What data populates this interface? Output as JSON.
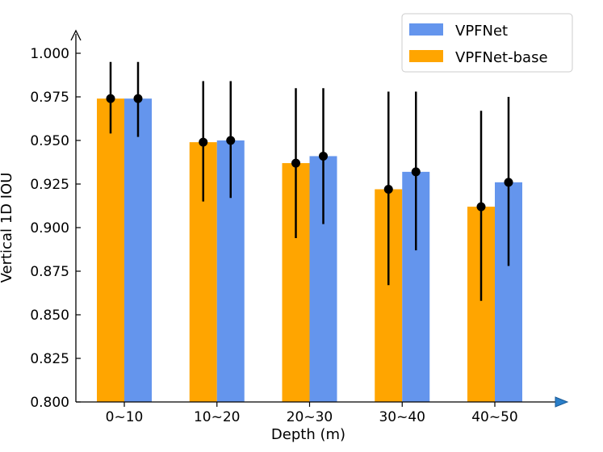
{
  "chart_data": {
    "type": "bar",
    "title": "",
    "xlabel": "Depth (m)",
    "ylabel": "Vertical 1D IOU",
    "ylim": [
      0.8,
      1.0
    ],
    "yticks": [
      "0.800",
      "0.825",
      "0.850",
      "0.875",
      "0.900",
      "0.925",
      "0.950",
      "0.975",
      "1.000"
    ],
    "categories": [
      "0~10",
      "10~20",
      "20~30",
      "30~40",
      "40~50"
    ],
    "series": [
      {
        "name": "VPFNet-base",
        "color": "#FFA500",
        "values": [
          0.974,
          0.949,
          0.937,
          0.922,
          0.912
        ],
        "err_low": [
          0.954,
          0.915,
          0.894,
          0.867,
          0.858
        ],
        "err_high": [
          0.995,
          0.984,
          0.98,
          0.978,
          0.967
        ]
      },
      {
        "name": "VPFNet",
        "color": "#6495ED",
        "values": [
          0.974,
          0.95,
          0.941,
          0.932,
          0.926
        ],
        "err_low": [
          0.952,
          0.917,
          0.902,
          0.887,
          0.878
        ],
        "err_high": [
          0.995,
          0.984,
          0.98,
          0.978,
          0.975
        ]
      }
    ],
    "legend": {
      "position": "top-right",
      "entries": [
        {
          "label": "VPFNet",
          "color": "#6495ED"
        },
        {
          "label": "VPFNet-base",
          "color": "#FFA500"
        }
      ]
    },
    "grid": false
  }
}
